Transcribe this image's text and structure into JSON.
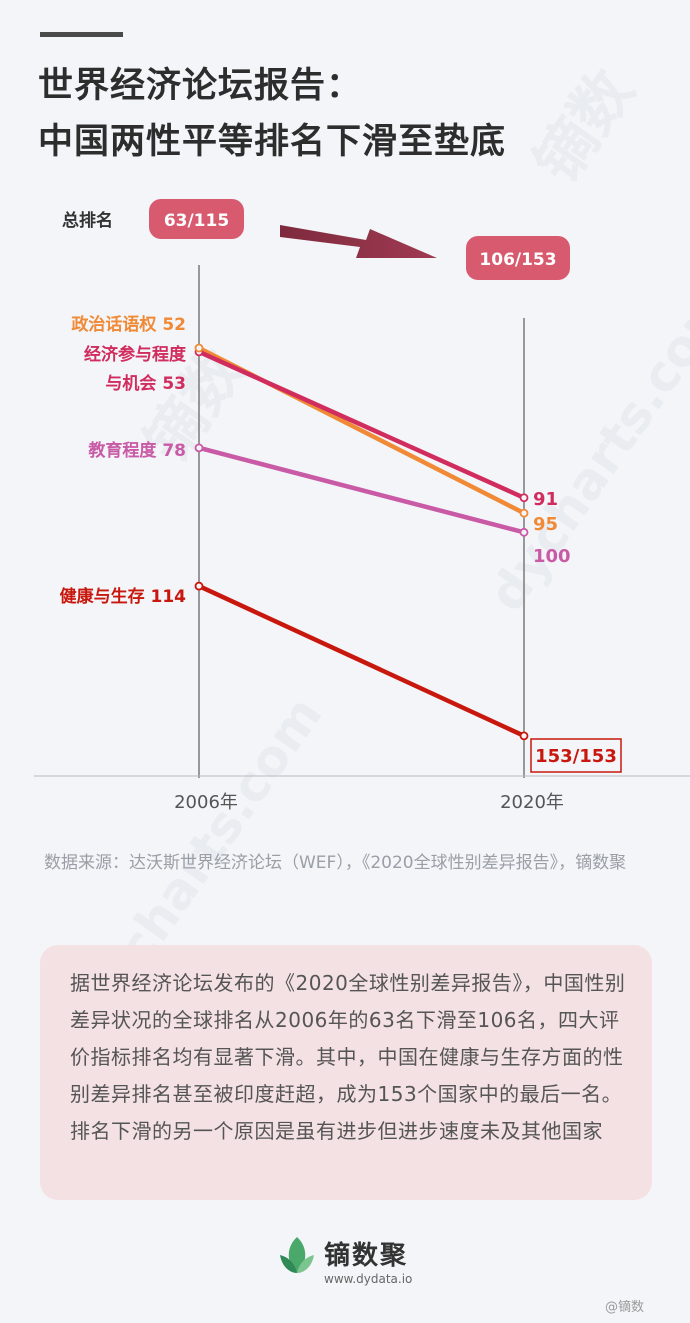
{
  "title": {
    "line1": "世界经济论坛报告：",
    "line2": "中国两性平等排名下滑至垫底"
  },
  "overall": {
    "label": "总排名",
    "start": "63/115",
    "end": "106/153"
  },
  "chart_data": {
    "type": "line",
    "x": [
      "2006年",
      "2020年"
    ],
    "ylim_rank": [
      0,
      160
    ],
    "series": [
      {
        "name": "经济参与程度与机会",
        "label_lines": [
          "经济参与程度",
          "与机会 53"
        ],
        "values": [
          53,
          91
        ],
        "end_label": "91",
        "color": "#d12c5e"
      },
      {
        "name": "政治话语权",
        "label_lines": [
          "政治话语权 52"
        ],
        "values": [
          52,
          95
        ],
        "end_label": "95",
        "color": "#f08a36"
      },
      {
        "name": "教育程度",
        "label_lines": [
          "教育程度 78"
        ],
        "values": [
          78,
          100
        ],
        "end_label": "100",
        "color": "#c95aa6"
      },
      {
        "name": "健康与生存",
        "label_lines": [
          "健康与生存 114"
        ],
        "values": [
          114,
          153
        ],
        "end_label": "153/153",
        "color": "#c8180e"
      }
    ]
  },
  "source": "数据来源：达沃斯世界经济论坛（WEF），《2020全球性别差异报告》，镝数聚",
  "note": "据世界经济论坛发布的《2020全球性别差异报告》，中国性别差异状况的全球排名从2006年的63名下滑至106名，四大评价指标排名均有显著下滑。其中，中国在健康与生存方面的性别差异排名甚至被印度赶超，成为153个国家中的最后一名。排名下滑的另一个原因是虽有进步但进步速度未及其他国家",
  "brand": {
    "name": "镝数聚",
    "url": "www.dydata.io",
    "watermark": "dycharts.com",
    "watermark_logo": "镝数"
  },
  "weibo_tag": "@镝数",
  "colors": {
    "badge": "#d75a6e",
    "arrow": "#8e3248",
    "axis": "#7a7a7a"
  }
}
